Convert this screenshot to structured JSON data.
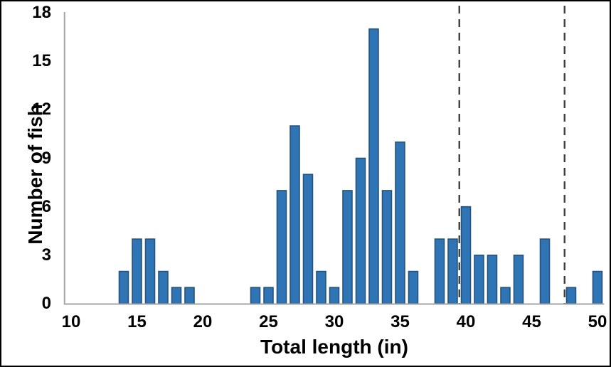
{
  "chart_data": {
    "type": "bar",
    "title": "",
    "xlabel": "Total length (in)",
    "ylabel": "Number of fish",
    "xlim": [
      9.5,
      50.5
    ],
    "ylim": [
      0,
      18
    ],
    "x_ticks": [
      10,
      15,
      20,
      25,
      30,
      35,
      40,
      45,
      50
    ],
    "y_ticks": [
      0,
      3,
      6,
      9,
      12,
      15,
      18
    ],
    "grid": false,
    "legend": false,
    "bar_width_units": 0.7,
    "x": [
      14,
      15,
      16,
      17,
      18,
      19,
      24,
      25,
      26,
      27,
      28,
      29,
      30,
      31,
      32,
      33,
      34,
      35,
      36,
      38,
      39,
      40,
      41,
      42,
      43,
      44,
      46,
      48,
      50
    ],
    "values": [
      2,
      4,
      4,
      2,
      1,
      1,
      1,
      1,
      7,
      11,
      8,
      2,
      1,
      7,
      9,
      17,
      7,
      10,
      2,
      4,
      4,
      6,
      3,
      3,
      1,
      3,
      4,
      1,
      2
    ],
    "reference_lines": [
      {
        "x": 39.5,
        "style": "dashed"
      },
      {
        "x": 47.5,
        "style": "dashed"
      }
    ],
    "colors": {
      "bar_fill": "#2F75B5",
      "bar_border": "#24527C",
      "axis_line": "#A6A6A6",
      "reference_line": "#3F3F3F",
      "text": "#000000",
      "background": "#FFFFFF"
    }
  }
}
